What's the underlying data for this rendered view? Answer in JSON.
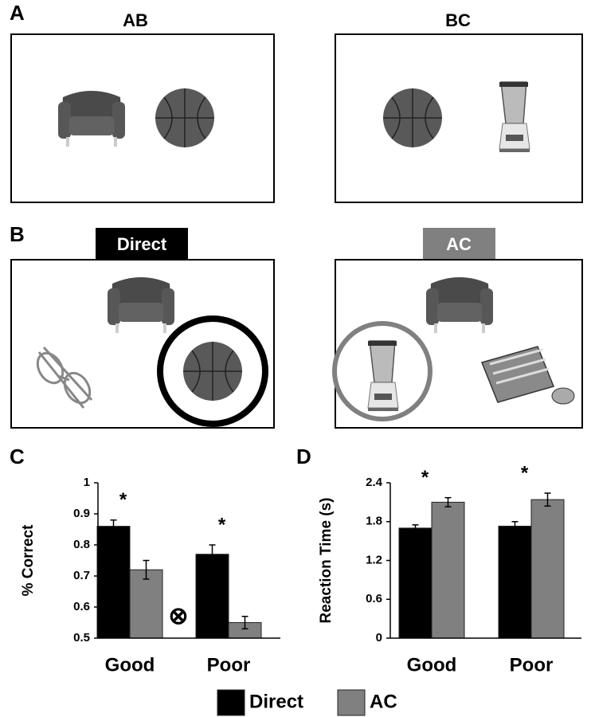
{
  "panel_a": {
    "label": "A",
    "titles": [
      "AB",
      "BC"
    ]
  },
  "panel_b": {
    "label": "B",
    "titles": [
      "Direct",
      "AC"
    ]
  },
  "chart_data": [
    {
      "type": "bar",
      "panel_label": "C",
      "ylabel": "% Correct",
      "categories": [
        "Good",
        "Poor"
      ],
      "series": [
        {
          "name": "Direct",
          "color": "#000000",
          "values": [
            0.86,
            0.77
          ],
          "errors": [
            0.02,
            0.03
          ]
        },
        {
          "name": "AC",
          "color": "#808080",
          "values": [
            0.72,
            0.55
          ],
          "errors": [
            0.03,
            0.02
          ]
        }
      ],
      "ylim": [
        0.5,
        1
      ],
      "yticks": [
        0.5,
        0.6,
        0.7,
        0.8,
        0.9,
        1
      ],
      "annotations": [
        "*",
        "*"
      ],
      "symbol": "⊗"
    },
    {
      "type": "bar",
      "panel_label": "D",
      "ylabel": "Reaction Time (s)",
      "categories": [
        "Good",
        "Poor"
      ],
      "series": [
        {
          "name": "Direct",
          "color": "#000000",
          "values": [
            1.7,
            1.73
          ],
          "errors": [
            0.05,
            0.07
          ]
        },
        {
          "name": "AC",
          "color": "#808080",
          "values": [
            2.1,
            2.14
          ],
          "errors": [
            0.07,
            0.1
          ]
        }
      ],
      "ylim": [
        0,
        2.4
      ],
      "yticks": [
        0,
        0.6,
        1.2,
        1.8,
        2.4
      ],
      "annotations": [
        "*",
        "*"
      ]
    }
  ]
}
